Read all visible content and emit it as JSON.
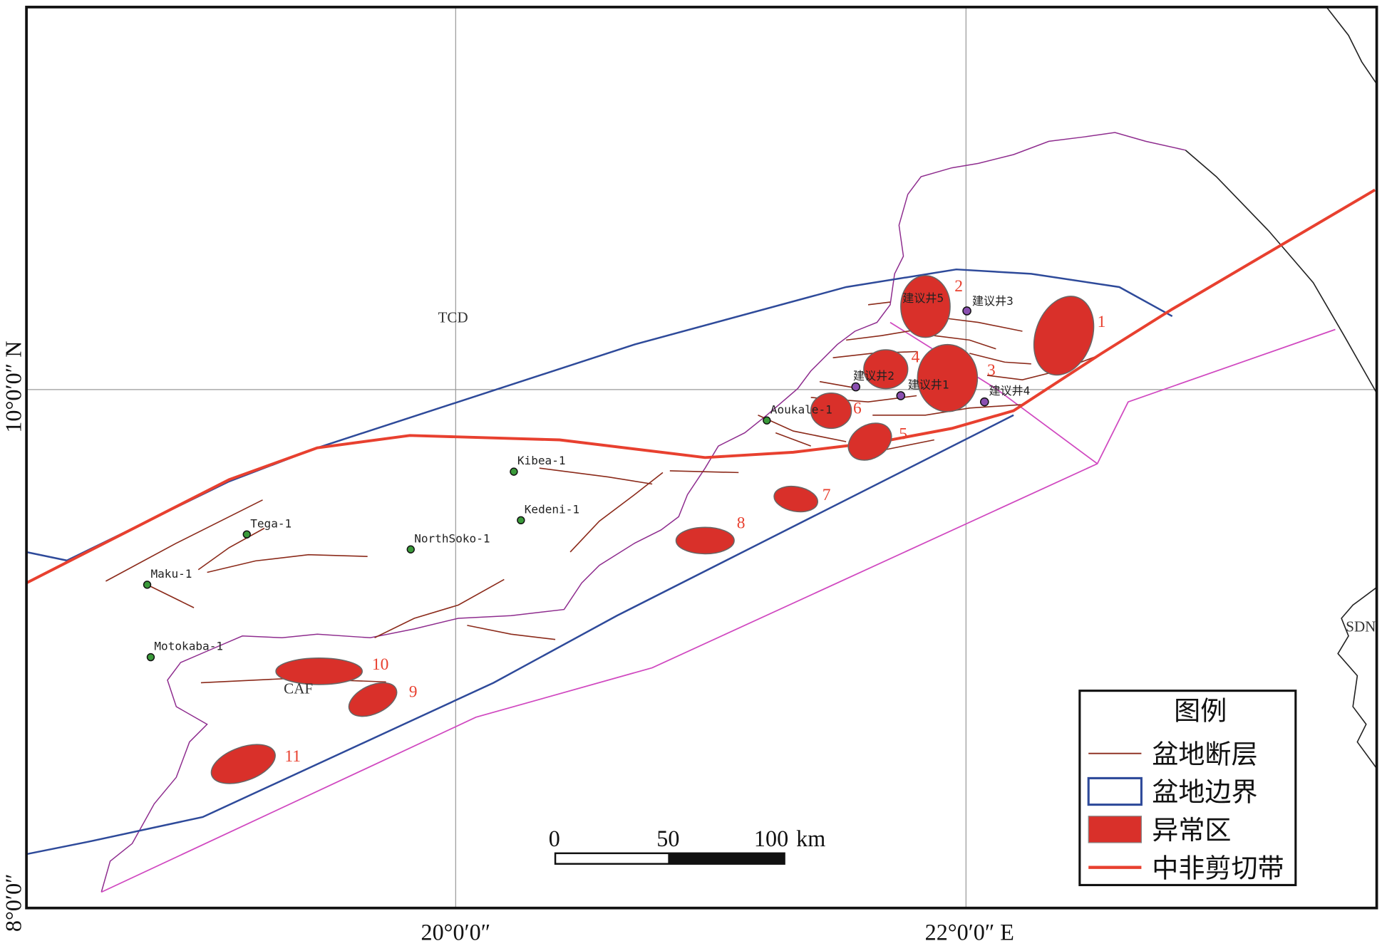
{
  "map": {
    "coordinates": {
      "lat_top": "10°0′0″ N",
      "lat_bottom": "8°0′0″",
      "lon_left": "20°0′0″",
      "lon_right": "22°0′0″ E"
    },
    "countries": [
      "TCD",
      "CAF",
      "SDN"
    ],
    "wells": [
      "Tega-1",
      "Maku-1",
      "Motokaba-1",
      "NorthSoko-1",
      "Kibea-1",
      "Kedeni-1",
      "Aoukale-1"
    ],
    "proposed_wells": [
      "建议井1",
      "建议井2",
      "建议井3",
      "建议井4",
      "建议井5"
    ],
    "anomalies": [
      "1",
      "2",
      "3",
      "4",
      "5",
      "6",
      "7",
      "8",
      "9",
      "10",
      "11"
    ]
  },
  "legend": {
    "title": "图例",
    "items": [
      "盆地断层",
      "盆地边界",
      "异常区",
      "中非剪切带"
    ]
  },
  "scale_bar": {
    "labels": [
      "0",
      "50",
      "100"
    ],
    "unit": "km"
  }
}
